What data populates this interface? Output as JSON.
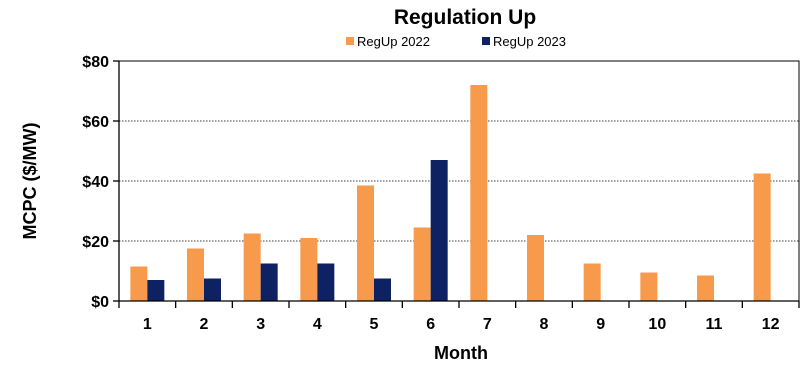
{
  "chart_data": {
    "type": "bar",
    "title": "Regulation Up",
    "xlabel": "Month",
    "ylabel": "MCPC ($/MW)",
    "categories": [
      "1",
      "2",
      "3",
      "4",
      "5",
      "6",
      "7",
      "8",
      "9",
      "10",
      "11",
      "12"
    ],
    "series": [
      {
        "name": "RegUp 2022",
        "color": "#F79A4C",
        "values": [
          11.5,
          17.5,
          22.5,
          21,
          38.5,
          24.5,
          72,
          22,
          12.5,
          9.5,
          8.5,
          42.5
        ]
      },
      {
        "name": "RegUp 2023",
        "color": "#0D2163",
        "values": [
          7,
          7.5,
          12.5,
          12.5,
          7.5,
          47,
          null,
          null,
          null,
          null,
          null,
          null
        ]
      }
    ],
    "ylim": [
      0,
      80
    ],
    "yticks": [
      0,
      20,
      40,
      60,
      80
    ],
    "ytick_labels": [
      "$0",
      "$20",
      "$40",
      "$60",
      "$80"
    ],
    "grid": true,
    "legend_position": "top-center"
  }
}
